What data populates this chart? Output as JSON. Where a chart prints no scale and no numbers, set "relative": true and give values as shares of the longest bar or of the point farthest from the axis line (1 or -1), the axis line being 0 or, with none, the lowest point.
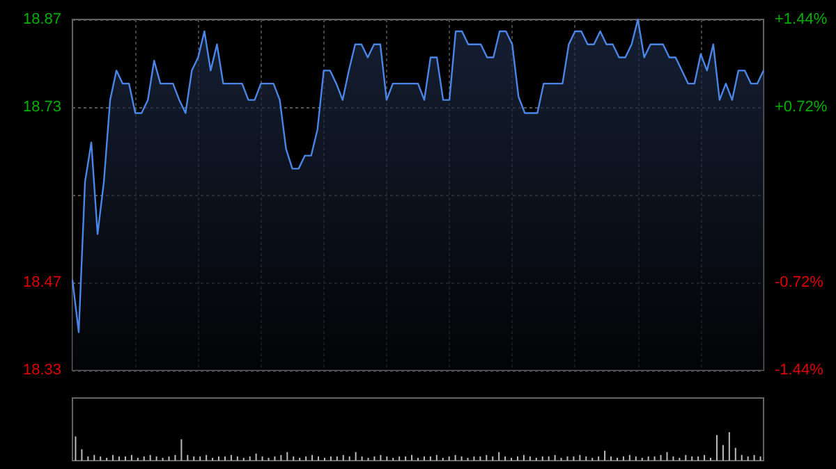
{
  "chart_data": [
    {
      "type": "area",
      "categories": [
        null,
        null,
        null,
        null,
        null,
        null,
        null,
        null,
        null,
        null,
        null,
        null,
        null,
        null,
        null,
        null,
        null,
        null,
        null,
        null,
        null,
        null,
        null,
        null,
        null,
        null,
        null,
        null,
        null,
        null,
        null,
        null,
        null,
        null,
        null,
        null,
        null,
        null,
        null,
        null,
        null,
        null,
        null,
        null,
        null,
        null,
        null,
        null,
        null,
        null,
        null,
        null,
        null,
        null,
        null,
        null,
        null,
        null,
        null,
        null,
        null,
        null,
        null,
        null,
        null,
        null,
        null,
        null,
        null,
        null,
        null,
        null,
        null,
        null,
        null,
        null,
        null,
        null,
        null,
        null,
        null,
        null,
        null,
        null,
        null,
        null,
        null,
        null,
        null,
        null,
        null,
        null,
        null,
        null,
        null,
        null,
        null,
        null,
        null,
        null,
        null,
        null,
        null,
        null,
        null,
        null,
        null,
        null,
        null,
        null,
        null
      ],
      "series": [
        {
          "color": "#4a86e8",
          "values": [
            18.47,
            18.39,
            18.62,
            18.68,
            18.54,
            18.62,
            18.745,
            18.79,
            18.77,
            18.77,
            18.725,
            18.725,
            18.745,
            18.805,
            18.77,
            18.77,
            18.77,
            18.745,
            18.725,
            18.79,
            18.81,
            18.85,
            18.79,
            18.83,
            18.77,
            18.77,
            18.77,
            18.77,
            18.745,
            18.745,
            18.77,
            18.77,
            18.77,
            18.745,
            18.67,
            18.64,
            18.64,
            18.66,
            18.66,
            18.7,
            18.79,
            18.79,
            18.77,
            18.745,
            18.79,
            18.83,
            18.83,
            18.81,
            18.83,
            18.83,
            18.745,
            18.77,
            18.77,
            18.77,
            18.77,
            18.77,
            18.745,
            18.81,
            18.81,
            18.745,
            18.745,
            18.85,
            18.85,
            18.83,
            18.83,
            18.83,
            18.81,
            18.81,
            18.85,
            18.85,
            18.83,
            18.75,
            18.725,
            18.725,
            18.725,
            18.77,
            18.77,
            18.77,
            18.77,
            18.83,
            18.85,
            18.85,
            18.83,
            18.83,
            18.85,
            18.83,
            18.83,
            18.81,
            18.81,
            18.83,
            18.868,
            18.81,
            18.83,
            18.83,
            18.83,
            18.81,
            18.81,
            18.79,
            18.77,
            18.77,
            18.815,
            18.79,
            18.83,
            18.745,
            18.77,
            18.745,
            18.79,
            18.79,
            18.77,
            18.77,
            18.79
          ]
        }
      ],
      "ylim": [
        18.332,
        18.868
      ],
      "yticks": [
        {
          "value": 18.332,
          "label": "18.33"
        },
        {
          "value": 18.466,
          "label": "18.47"
        },
        {
          "value": 18.6,
          "label": null
        },
        {
          "value": 18.734,
          "label": "18.73"
        },
        {
          "value": 18.868,
          "label": "18.87"
        }
      ],
      "y2lim": [
        -1.44,
        1.44
      ],
      "y2ticks": [
        {
          "value": -1.44,
          "label": "-1.44%"
        },
        {
          "value": -0.72,
          "label": "-0.72%"
        },
        {
          "value": 0,
          "label": null
        },
        {
          "value": 0.72,
          "label": "+0.72%"
        },
        {
          "value": 1.44,
          "label": "+1.44%"
        }
      ],
      "grid": true,
      "tick_labels": "y"
    },
    {
      "type": "bar",
      "relative": true,
      "categories": [
        null,
        null,
        null,
        null,
        null,
        null,
        null,
        null,
        null,
        null,
        null,
        null,
        null,
        null,
        null,
        null,
        null,
        null,
        null,
        null,
        null,
        null,
        null,
        null,
        null,
        null,
        null,
        null,
        null,
        null,
        null,
        null,
        null,
        null,
        null,
        null,
        null,
        null,
        null,
        null,
        null,
        null,
        null,
        null,
        null,
        null,
        null,
        null,
        null,
        null,
        null,
        null,
        null,
        null,
        null,
        null,
        null,
        null,
        null,
        null,
        null,
        null,
        null,
        null,
        null,
        null,
        null,
        null,
        null,
        null,
        null,
        null,
        null,
        null,
        null,
        null,
        null,
        null,
        null,
        null,
        null,
        null,
        null,
        null,
        null,
        null,
        null,
        null,
        null,
        null,
        null,
        null,
        null,
        null,
        null,
        null,
        null,
        null,
        null,
        null,
        null,
        null,
        null,
        null,
        null,
        null,
        null,
        null,
        null,
        null,
        null
      ],
      "series": [
        {
          "color": "#bbbbbb",
          "values": [
            0.85,
            0.4,
            0.15,
            0.2,
            0.15,
            0.1,
            0.2,
            0.15,
            0.15,
            0.2,
            0.1,
            0.15,
            0.2,
            0.15,
            0.1,
            0.15,
            0.2,
            0.75,
            0.2,
            0.15,
            0.15,
            0.2,
            0.1,
            0.15,
            0.15,
            0.2,
            0.15,
            0.1,
            0.15,
            0.25,
            0.15,
            0.1,
            0.15,
            0.2,
            0.3,
            0.15,
            0.1,
            0.15,
            0.2,
            0.15,
            0.1,
            0.15,
            0.15,
            0.2,
            0.15,
            0.3,
            0.15,
            0.1,
            0.15,
            0.2,
            0.15,
            0.1,
            0.15,
            0.15,
            0.2,
            0.1,
            0.15,
            0.15,
            0.2,
            0.1,
            0.15,
            0.2,
            0.15,
            0.1,
            0.15,
            0.15,
            0.2,
            0.15,
            0.3,
            0.15,
            0.1,
            0.15,
            0.2,
            0.15,
            0.1,
            0.15,
            0.15,
            0.2,
            0.1,
            0.15,
            0.15,
            0.2,
            0.15,
            0.1,
            0.15,
            0.35,
            0.15,
            0.1,
            0.15,
            0.2,
            0.15,
            0.1,
            0.15,
            0.15,
            0.2,
            0.3,
            0.15,
            0.1,
            0.2,
            0.15,
            0.15,
            0.2,
            0.1,
            0.9,
            0.55,
            1.0,
            0.45,
            0.2,
            0.15,
            0.2,
            0.15
          ]
        }
      ],
      "tick_labels": false
    }
  ]
}
